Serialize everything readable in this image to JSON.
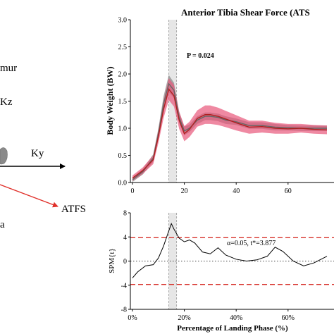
{
  "diagram": {
    "labels": {
      "femur": "mur",
      "kz": "Kz",
      "ky": "Ky",
      "atfs": "ATFS",
      "tibia": "a"
    },
    "colors": {
      "axis": "#000000",
      "force": "#e0302a",
      "bone": "#8a8a8a"
    }
  },
  "chart_data": [
    {
      "type": "line",
      "title": "Anterior Tibia Shear Force (ATS",
      "xlabel": "",
      "ylabel": "Body Weight (BW)",
      "xlim": [
        0,
        75
      ],
      "ylim": [
        0,
        3.0
      ],
      "xticks": [
        0,
        20,
        40,
        60
      ],
      "yticks": [
        "0.0",
        "0.5",
        "1.0",
        "1.5",
        "2.0",
        "2.5",
        "3.0"
      ],
      "annotation": "P = 0.024",
      "highlight_band": [
        14,
        17
      ],
      "series": [
        {
          "color": "#666666",
          "band_color": "#8c8c8c",
          "x": [
            0,
            4,
            8,
            10,
            12,
            14,
            16,
            18,
            20,
            22,
            25,
            28,
            30,
            33,
            36,
            40,
            45,
            50,
            55,
            60,
            65,
            70,
            75
          ],
          "y": [
            0.05,
            0.2,
            0.45,
            0.9,
            1.45,
            1.82,
            1.7,
            1.2,
            0.95,
            1.0,
            1.15,
            1.22,
            1.22,
            1.2,
            1.15,
            1.12,
            1.05,
            1.05,
            1.02,
            1.01,
            1.0,
            1.0,
            1.0
          ],
          "band": [
            0.04,
            0.05,
            0.07,
            0.1,
            0.14,
            0.16,
            0.14,
            0.1,
            0.08,
            0.07,
            0.07,
            0.07,
            0.07,
            0.07,
            0.07,
            0.06,
            0.06,
            0.06,
            0.06,
            0.05,
            0.05,
            0.05,
            0.05
          ]
        },
        {
          "color": "#b02020",
          "band_color": "#e8577a",
          "x": [
            0,
            4,
            8,
            10,
            12,
            14,
            16,
            18,
            20,
            22,
            25,
            28,
            30,
            33,
            36,
            40,
            45,
            50,
            55,
            60,
            65,
            70,
            75
          ],
          "y": [
            0.08,
            0.22,
            0.42,
            0.85,
            1.35,
            1.72,
            1.6,
            1.15,
            0.9,
            0.98,
            1.18,
            1.25,
            1.25,
            1.22,
            1.17,
            1.1,
            1.02,
            1.03,
            1.0,
            0.99,
            1.0,
            0.98,
            0.97
          ],
          "band": [
            0.05,
            0.06,
            0.08,
            0.12,
            0.16,
            0.2,
            0.2,
            0.16,
            0.14,
            0.14,
            0.15,
            0.17,
            0.17,
            0.16,
            0.15,
            0.14,
            0.12,
            0.11,
            0.1,
            0.09,
            0.08,
            0.08,
            0.08
          ]
        }
      ]
    },
    {
      "type": "line",
      "title": "",
      "xlabel": "Percentage of Landing Phase (%)",
      "ylabel": "SPM{t}",
      "xlim": [
        0,
        75
      ],
      "ylim": [
        -8,
        8
      ],
      "xticks": [
        "0%",
        "20%",
        "40%",
        "60%"
      ],
      "yticks": [
        "-8",
        "-4",
        "0",
        "4",
        "8"
      ],
      "annotation": "α=0.05, t*=3.877",
      "threshold": 3.877,
      "highlight_band": [
        14,
        17
      ],
      "series": [
        {
          "color": "#000000",
          "x": [
            0,
            2,
            5,
            8,
            10,
            12,
            14,
            15,
            16,
            18,
            20,
            22,
            24,
            27,
            30,
            33,
            36,
            40,
            44,
            48,
            52,
            55,
            58,
            62,
            66,
            70,
            75
          ],
          "y": [
            -2.8,
            -1.8,
            -0.8,
            -0.6,
            0.5,
            2.5,
            5.0,
            6.2,
            5.3,
            3.8,
            3.2,
            3.5,
            3.0,
            1.5,
            1.2,
            2.2,
            1.0,
            0.3,
            0.0,
            0.2,
            0.8,
            2.3,
            1.6,
            0.0,
            -0.8,
            -0.3,
            0.8
          ]
        }
      ]
    }
  ]
}
